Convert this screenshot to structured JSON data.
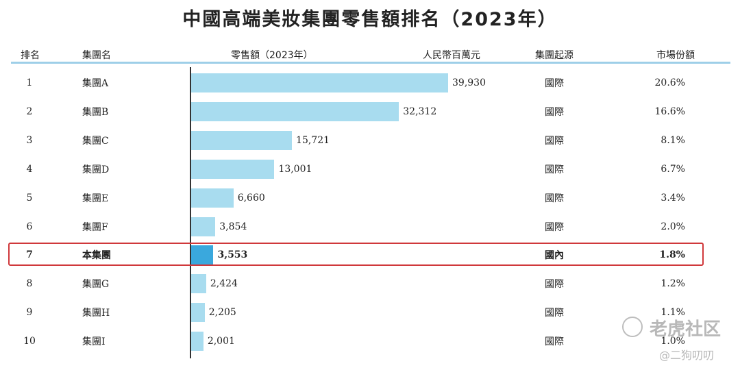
{
  "chart_data": {
    "type": "bar",
    "title": "中國高端美妝集團零售額排名（2023年）",
    "columns": {
      "rank": "排名",
      "group": "集團名",
      "sales": "零售額（2023年）",
      "unit": "人民幣百萬元",
      "origin": "集團起源",
      "share": "市場份額"
    },
    "xlim": [
      0,
      39930
    ],
    "highlight_index": 6,
    "rows": [
      {
        "rank": "1",
        "group": "集團A",
        "value": 39930,
        "value_label": "39,930",
        "origin": "國際",
        "share": "20.6%"
      },
      {
        "rank": "2",
        "group": "集團B",
        "value": 32312,
        "value_label": "32,312",
        "origin": "國際",
        "share": "16.6%"
      },
      {
        "rank": "3",
        "group": "集團C",
        "value": 15721,
        "value_label": "15,721",
        "origin": "國際",
        "share": "8.1%"
      },
      {
        "rank": "4",
        "group": "集團D",
        "value": 13001,
        "value_label": "13,001",
        "origin": "國際",
        "share": "6.7%"
      },
      {
        "rank": "5",
        "group": "集團E",
        "value": 6660,
        "value_label": "6,660",
        "origin": "國際",
        "share": "3.4%"
      },
      {
        "rank": "6",
        "group": "集團F",
        "value": 3854,
        "value_label": "3,854",
        "origin": "國際",
        "share": "2.0%"
      },
      {
        "rank": "7",
        "group": "本集團",
        "value": 3553,
        "value_label": "3,553",
        "origin": "國內",
        "share": "1.8%"
      },
      {
        "rank": "8",
        "group": "集團G",
        "value": 2424,
        "value_label": "2,424",
        "origin": "國際",
        "share": "1.2%"
      },
      {
        "rank": "9",
        "group": "集團H",
        "value": 2205,
        "value_label": "2,205",
        "origin": "國際",
        "share": "1.1%"
      },
      {
        "rank": "10",
        "group": "集團I",
        "value": 2001,
        "value_label": "2,001",
        "origin": "國際",
        "share": "1.0%"
      }
    ],
    "colors": {
      "bar": "#a8dcef",
      "highlight_bar": "#3aa8dd",
      "highlight_border": "#d0383b",
      "header_rule": "#9ecfe8"
    }
  },
  "watermark": {
    "brand": "老虎社区",
    "handle": "@二狗叨叨"
  }
}
